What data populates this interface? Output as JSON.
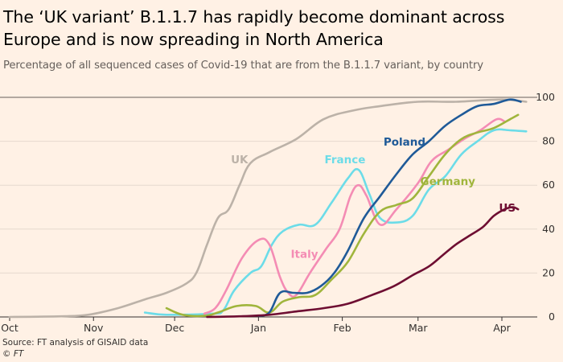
{
  "title": "The ‘UK variant’ B.1.1.7 has rapidly become dominant across Europe and is now spreading in North America",
  "subtitle": "Percentage of all sequenced cases of Covid-19 that are from the B.1.1.7 variant, by country",
  "source": "Source: FT analysis of GISAID data",
  "credit": "© FT",
  "chart_data": {
    "type": "line",
    "x_unit": "date (2020-10-01 to 2021-04-15)",
    "xlim": [
      "2020-10-01",
      "2021-04-15"
    ],
    "ylim": [
      0,
      100
    ],
    "grid": "horizontal",
    "legend": "direct labels",
    "y_ticks": [
      0,
      20,
      40,
      60,
      80,
      100
    ],
    "x_ticks": [
      {
        "label": "Oct",
        "date": "2020-10-01"
      },
      {
        "label": "Nov",
        "date": "2020-11-01"
      },
      {
        "label": "Dec",
        "date": "2020-12-01"
      },
      {
        "label": "Jan",
        "date": "2021-01-01"
      },
      {
        "label": "Feb",
        "date": "2021-02-01"
      },
      {
        "label": "Mar",
        "date": "2021-03-01"
      },
      {
        "label": "Apr",
        "date": "2021-04-01"
      }
    ],
    "series": [
      {
        "name": "UK",
        "color": "#bcb2a8",
        "label_date": "2020-12-25",
        "label_value": 70,
        "points": [
          [
            "2020-10-01",
            0
          ],
          [
            "2020-10-20",
            0.3
          ],
          [
            "2020-10-30",
            1
          ],
          [
            "2020-11-10",
            4
          ],
          [
            "2020-11-20",
            8
          ],
          [
            "2020-11-28",
            11
          ],
          [
            "2020-12-05",
            15
          ],
          [
            "2020-12-09",
            20
          ],
          [
            "2020-12-13",
            33
          ],
          [
            "2020-12-17",
            45
          ],
          [
            "2020-12-21",
            49
          ],
          [
            "2020-12-25",
            60
          ],
          [
            "2020-12-29",
            70
          ],
          [
            "2021-01-05",
            75
          ],
          [
            "2021-01-15",
            81
          ],
          [
            "2021-01-25",
            90
          ],
          [
            "2021-02-05",
            94
          ],
          [
            "2021-02-15",
            96
          ],
          [
            "2021-03-01",
            98
          ],
          [
            "2021-03-15",
            98
          ],
          [
            "2021-04-01",
            99
          ],
          [
            "2021-04-10",
            98
          ]
        ]
      },
      {
        "name": "France",
        "color": "#6cdce8",
        "label_date": "2021-02-02",
        "label_value": 70,
        "points": [
          [
            "2020-11-20",
            2
          ],
          [
            "2020-11-28",
            1
          ],
          [
            "2020-12-15",
            1.5
          ],
          [
            "2020-12-19",
            3
          ],
          [
            "2020-12-23",
            12
          ],
          [
            "2020-12-29",
            20
          ],
          [
            "2021-01-02",
            23
          ],
          [
            "2021-01-06",
            33
          ],
          [
            "2021-01-10",
            39
          ],
          [
            "2021-01-16",
            42
          ],
          [
            "2021-01-22",
            42
          ],
          [
            "2021-01-28",
            52
          ],
          [
            "2021-02-03",
            63
          ],
          [
            "2021-02-07",
            67
          ],
          [
            "2021-02-11",
            56
          ],
          [
            "2021-02-15",
            45
          ],
          [
            "2021-02-21",
            43
          ],
          [
            "2021-02-27",
            46
          ],
          [
            "2021-03-05",
            58
          ],
          [
            "2021-03-11",
            64
          ],
          [
            "2021-03-17",
            74
          ],
          [
            "2021-03-23",
            80
          ],
          [
            "2021-03-29",
            85
          ],
          [
            "2021-04-04",
            85
          ],
          [
            "2021-04-10",
            84.5
          ]
        ]
      },
      {
        "name": "Italy",
        "color": "#f48cb4",
        "label_date": "2021-01-18",
        "label_value": 27,
        "points": [
          [
            "2020-12-12",
            1.5
          ],
          [
            "2020-12-16",
            4
          ],
          [
            "2020-12-20",
            12
          ],
          [
            "2020-12-26",
            27
          ],
          [
            "2021-01-01",
            35
          ],
          [
            "2021-01-05",
            33
          ],
          [
            "2021-01-09",
            18
          ],
          [
            "2021-01-12",
            11
          ],
          [
            "2021-01-15",
            10
          ],
          [
            "2021-01-20",
            20
          ],
          [
            "2021-01-26",
            31
          ],
          [
            "2021-01-31",
            40
          ],
          [
            "2021-02-04",
            55
          ],
          [
            "2021-02-07",
            60
          ],
          [
            "2021-02-10",
            55
          ],
          [
            "2021-02-15",
            42
          ],
          [
            "2021-02-21",
            49
          ],
          [
            "2021-03-01",
            61
          ],
          [
            "2021-03-06",
            71
          ],
          [
            "2021-03-12",
            76
          ],
          [
            "2021-03-18",
            81
          ],
          [
            "2021-03-24",
            85
          ],
          [
            "2021-03-30",
            90
          ],
          [
            "2021-04-02",
            89
          ]
        ]
      },
      {
        "name": "Germany",
        "color": "#a0b53c",
        "label_date": "2021-03-12",
        "label_value": 60,
        "points": [
          [
            "2020-11-28",
            4
          ],
          [
            "2020-12-04",
            1
          ],
          [
            "2020-12-12",
            0.5
          ],
          [
            "2020-12-17",
            2
          ],
          [
            "2020-12-24",
            5
          ],
          [
            "2020-12-31",
            5
          ],
          [
            "2021-01-05",
            2
          ],
          [
            "2021-01-10",
            7
          ],
          [
            "2021-01-16",
            9
          ],
          [
            "2021-01-22",
            10
          ],
          [
            "2021-01-28",
            17
          ],
          [
            "2021-02-03",
            25
          ],
          [
            "2021-02-09",
            38
          ],
          [
            "2021-02-15",
            48
          ],
          [
            "2021-02-21",
            51
          ],
          [
            "2021-02-27",
            54
          ],
          [
            "2021-03-05",
            64
          ],
          [
            "2021-03-11",
            74
          ],
          [
            "2021-03-17",
            81
          ],
          [
            "2021-03-23",
            84
          ],
          [
            "2021-03-29",
            86
          ],
          [
            "2021-04-04",
            90
          ],
          [
            "2021-04-07",
            92
          ]
        ]
      },
      {
        "name": "Poland",
        "color": "#1f5a98",
        "label_date": "2021-02-24",
        "label_value": 78,
        "points": [
          [
            "2021-01-01",
            0.5
          ],
          [
            "2021-01-05",
            2
          ],
          [
            "2021-01-09",
            11
          ],
          [
            "2021-01-14",
            11
          ],
          [
            "2021-01-19",
            11
          ],
          [
            "2021-01-24",
            14
          ],
          [
            "2021-01-29",
            20
          ],
          [
            "2021-02-03",
            30
          ],
          [
            "2021-02-09",
            45
          ],
          [
            "2021-02-15",
            55
          ],
          [
            "2021-02-21",
            65
          ],
          [
            "2021-02-27",
            74
          ],
          [
            "2021-03-05",
            80
          ],
          [
            "2021-03-11",
            87
          ],
          [
            "2021-03-17",
            92
          ],
          [
            "2021-03-23",
            96
          ],
          [
            "2021-03-29",
            97
          ],
          [
            "2021-04-04",
            99
          ],
          [
            "2021-04-08",
            98
          ]
        ]
      },
      {
        "name": "US",
        "color": "#6e0e32",
        "label_date": "2021-04-03",
        "label_value": 48,
        "points": [
          [
            "2020-12-13",
            0
          ],
          [
            "2020-12-25",
            0.3
          ],
          [
            "2021-01-05",
            1
          ],
          [
            "2021-01-15",
            2.5
          ],
          [
            "2021-01-25",
            4
          ],
          [
            "2021-02-03",
            6
          ],
          [
            "2021-02-12",
            10
          ],
          [
            "2021-02-20",
            14
          ],
          [
            "2021-02-27",
            19
          ],
          [
            "2021-03-05",
            23
          ],
          [
            "2021-03-10",
            28
          ],
          [
            "2021-03-15",
            33
          ],
          [
            "2021-03-20",
            37
          ],
          [
            "2021-03-25",
            41
          ],
          [
            "2021-03-29",
            46
          ],
          [
            "2021-04-02",
            49
          ],
          [
            "2021-04-05",
            50
          ],
          [
            "2021-04-07",
            49
          ]
        ]
      }
    ]
  }
}
